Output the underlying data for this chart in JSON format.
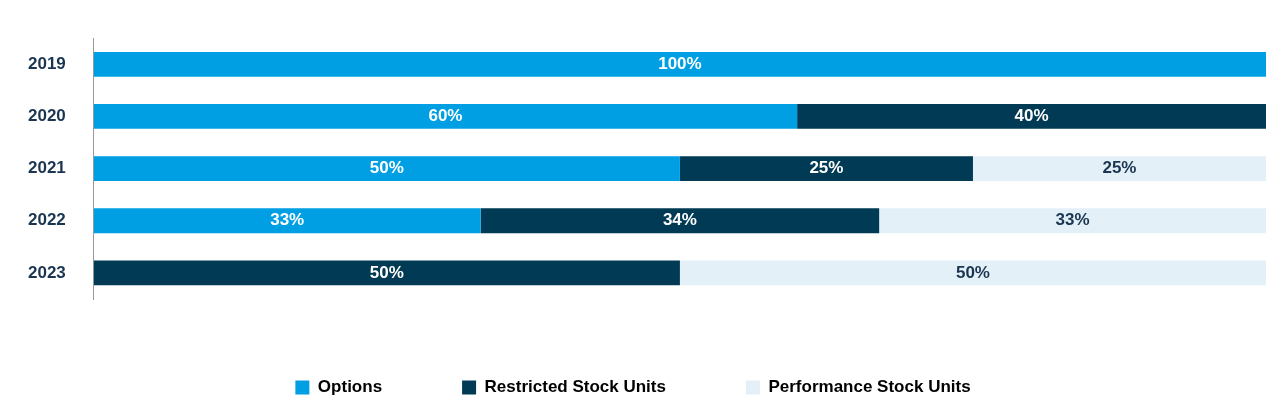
{
  "chart_data": {
    "type": "bar",
    "orientation": "horizontal",
    "stacked": true,
    "categories": [
      "2019",
      "2020",
      "2021",
      "2022",
      "2023"
    ],
    "series": [
      {
        "name": "Options",
        "color": "#009fe3",
        "values": [
          100,
          60,
          50,
          33,
          null
        ],
        "value_labels": [
          "100%",
          "60%",
          "50%",
          "33%",
          null
        ]
      },
      {
        "name": "Restricted Stock Units",
        "color": "#003a54",
        "values": [
          null,
          40,
          25,
          34,
          50
        ],
        "value_labels": [
          null,
          "40%",
          "25%",
          "34%",
          "50%"
        ]
      },
      {
        "name": "Performance Stock Units",
        "color": "#e4f0f8",
        "values": [
          null,
          null,
          25,
          33,
          50
        ],
        "value_labels": [
          null,
          null,
          "25%",
          "33%",
          "50%"
        ]
      }
    ],
    "legend": "bottom",
    "tick_labels": "y",
    "grid": false
  }
}
